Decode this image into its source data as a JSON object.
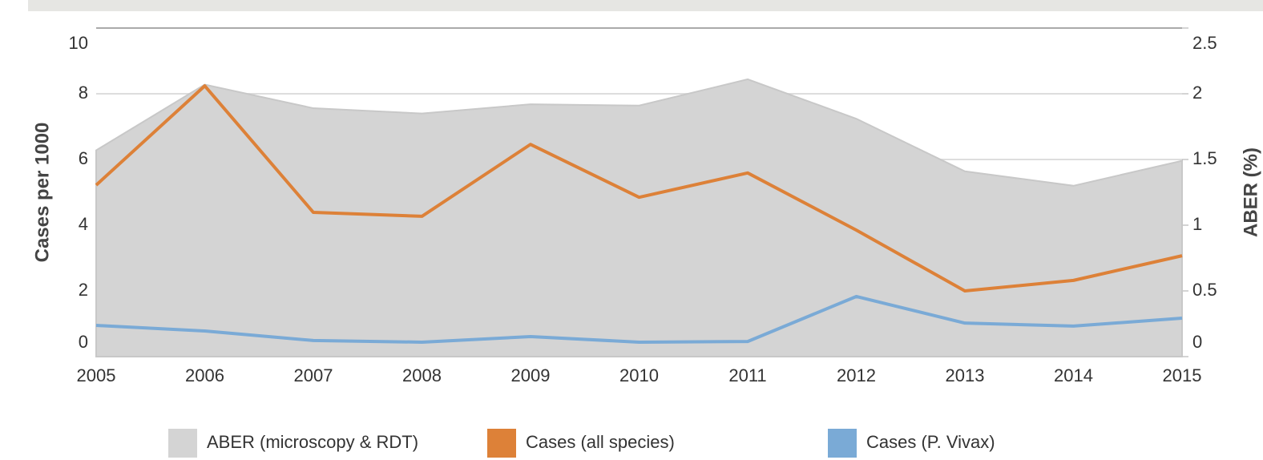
{
  "chart_data": {
    "type": "line",
    "y_label": "Cases per 1000",
    "y2_label": "ABER (%)",
    "categories": [
      "2005",
      "2006",
      "2007",
      "2008",
      "2009",
      "2010",
      "2011",
      "2012",
      "2013",
      "2014",
      "2015"
    ],
    "ylim": [
      0,
      10
    ],
    "yticks": [
      0,
      2,
      4,
      6,
      8,
      10
    ],
    "y2lim": [
      0,
      2.5
    ],
    "y2ticks": [
      0,
      0.5,
      1,
      1.5,
      2,
      2.5
    ],
    "grid": true,
    "series": [
      {
        "name": "ABER (microscopy & RDT)",
        "color": "#d4d4d4",
        "type": "area",
        "axis": "y2",
        "values": [
          1.57,
          2.07,
          1.89,
          1.85,
          1.92,
          1.91,
          2.11,
          1.81,
          1.41,
          1.3,
          1.49
        ]
      },
      {
        "name": "Cases (all species)",
        "color": "#dd8138",
        "type": "line",
        "values": [
          5.22,
          8.24,
          4.39,
          4.27,
          6.46,
          4.85,
          5.59,
          3.85,
          2.0,
          2.32,
          3.07
        ]
      },
      {
        "name": "Cases (P. Vivax)",
        "color": "#7aaad6",
        "type": "line",
        "values": [
          0.95,
          0.78,
          0.49,
          0.44,
          0.61,
          0.44,
          0.46,
          1.83,
          1.02,
          0.93,
          1.17
        ]
      }
    ]
  }
}
